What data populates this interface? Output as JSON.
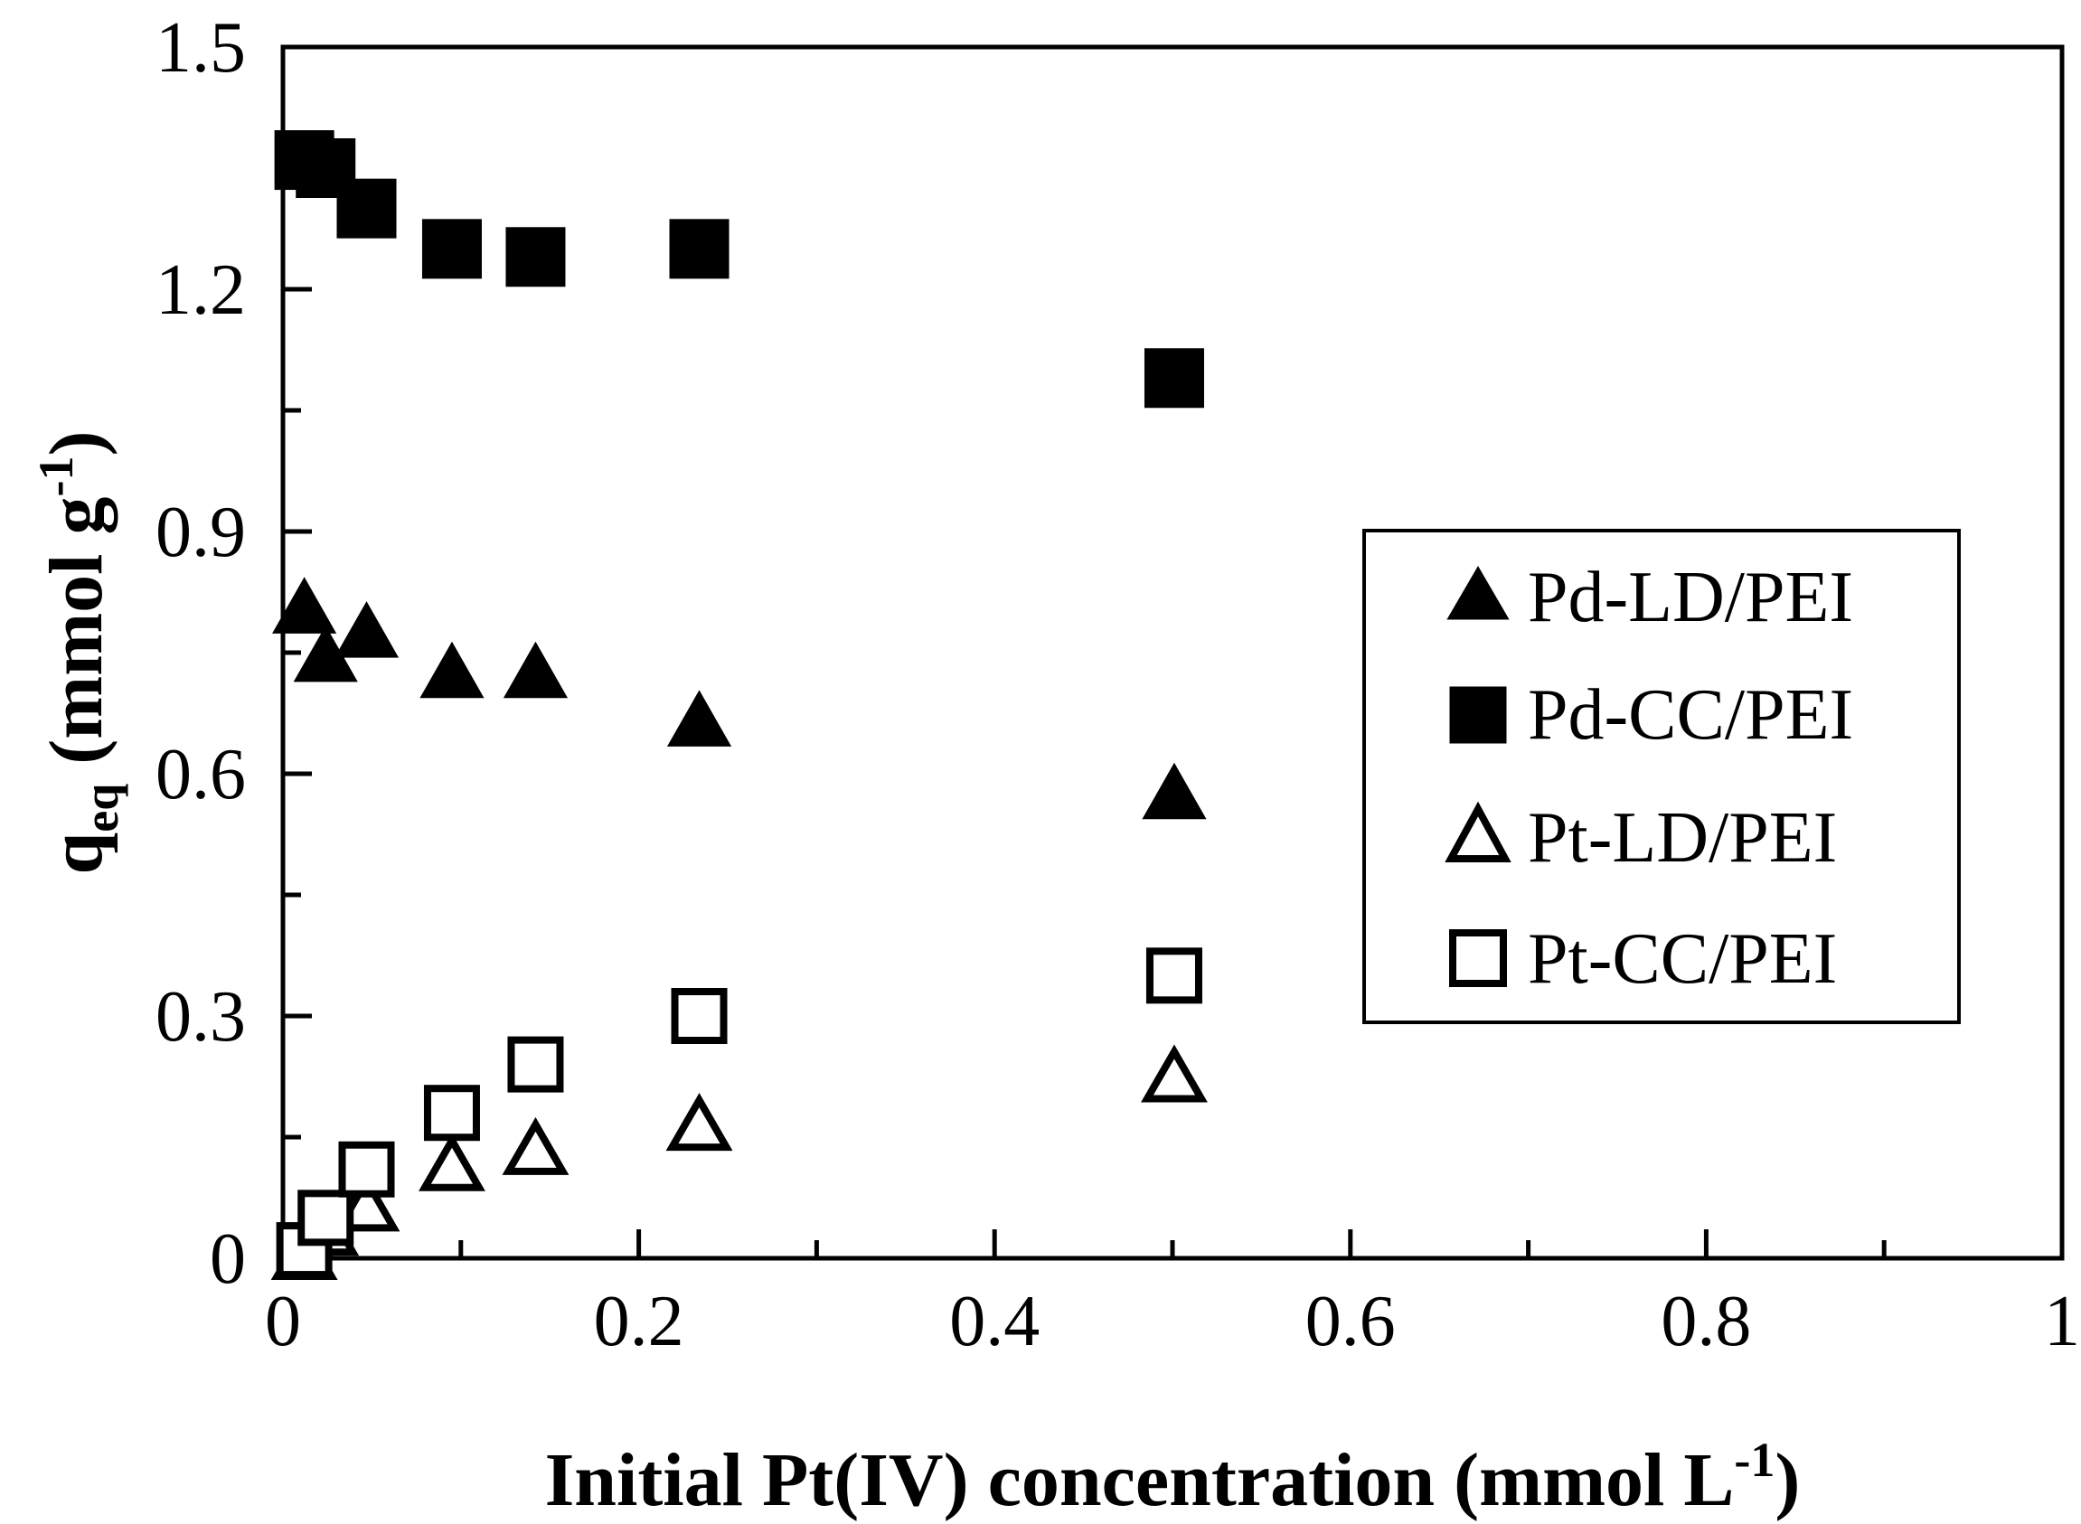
{
  "chart_data": {
    "type": "scatter",
    "title": "",
    "xlabel": {
      "main": "Initial Pt(IV) concentration (mmol L",
      "sup": "-1",
      "close": ")"
    },
    "ylabel": {
      "q": "q",
      "sub": "eq",
      "unit": " (mmol g",
      "sup": "-1",
      "close": ")"
    },
    "xlim": [
      0,
      1
    ],
    "ylim": [
      0,
      1.5
    ],
    "x_ticks": [
      0,
      0.2,
      0.4,
      0.6,
      0.8,
      1
    ],
    "x_tick_labels": [
      "0",
      "0.2",
      "0.4",
      "0.6",
      "0.8",
      "1"
    ],
    "y_ticks": [
      0,
      0.3,
      0.6,
      0.9,
      1.2,
      1.5
    ],
    "y_tick_labels": [
      "0",
      "0.3",
      "0.6",
      "0.9",
      "1.2",
      "1.5"
    ],
    "grid": false,
    "legend_position": "right",
    "series": [
      {
        "name": "Pd-LD/PEI",
        "marker": "triangle-filled",
        "points": [
          [
            0.012,
            0.8
          ],
          [
            0.024,
            0.74
          ],
          [
            0.047,
            0.77
          ],
          [
            0.095,
            0.72
          ],
          [
            0.142,
            0.72
          ],
          [
            0.234,
            0.66
          ],
          [
            0.501,
            0.57
          ]
        ]
      },
      {
        "name": "Pd-CC/PEI",
        "marker": "square-filled",
        "points": [
          [
            0.012,
            1.36
          ],
          [
            0.024,
            1.35
          ],
          [
            0.047,
            1.3
          ],
          [
            0.095,
            1.25
          ],
          [
            0.142,
            1.24
          ],
          [
            0.234,
            1.25
          ],
          [
            0.501,
            1.09
          ]
        ]
      },
      {
        "name": "Pt-LD/PEI",
        "marker": "triangle-open",
        "points": [
          [
            0.012,
            0.0
          ],
          [
            0.024,
            0.03
          ],
          [
            0.047,
            0.06
          ],
          [
            0.095,
            0.11
          ],
          [
            0.142,
            0.13
          ],
          [
            0.234,
            0.16
          ],
          [
            0.501,
            0.22
          ]
        ]
      },
      {
        "name": "Pt-CC/PEI",
        "marker": "square-open",
        "points": [
          [
            0.012,
            0.01
          ],
          [
            0.024,
            0.05
          ],
          [
            0.047,
            0.11
          ],
          [
            0.095,
            0.18
          ],
          [
            0.142,
            0.24
          ],
          [
            0.234,
            0.3
          ],
          [
            0.501,
            0.35
          ]
        ]
      }
    ],
    "colors": {
      "ink": "#000000",
      "background": "#ffffff"
    }
  }
}
